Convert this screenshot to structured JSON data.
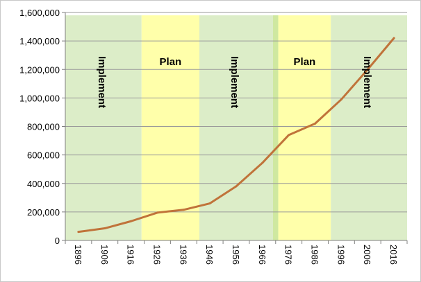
{
  "chart_data": {
    "type": "line",
    "title": "",
    "xlabel": "",
    "ylabel": "",
    "x": [
      1896,
      1906,
      1916,
      1926,
      1936,
      1946,
      1956,
      1966,
      1976,
      1986,
      1996,
      2006,
      2016
    ],
    "x_tick_labels": [
      "1896",
      "1906",
      "1916",
      "1926",
      "1936",
      "1946",
      "1956",
      "1966",
      "1976",
      "1986",
      "1996",
      "2006",
      "2016"
    ],
    "xlim": [
      1891,
      2021
    ],
    "ylim": [
      0,
      1600000
    ],
    "y_ticks": [
      0,
      200000,
      400000,
      600000,
      800000,
      1000000,
      1200000,
      1400000,
      1600000
    ],
    "y_tick_labels": [
      "0",
      "200,000",
      "400,000",
      "600,000",
      "800,000",
      "1,000,000",
      "1,200,000",
      "1,400,000",
      "1,600,000"
    ],
    "grid": true,
    "legend": "none",
    "series": [
      {
        "color": "#c0733a",
        "values": [
          [
            1896,
            60000
          ],
          [
            1906,
            85000
          ],
          [
            1916,
            135000
          ],
          [
            1926,
            195000
          ],
          [
            1936,
            215000
          ],
          [
            1946,
            260000
          ],
          [
            1956,
            380000
          ],
          [
            1966,
            545000
          ],
          [
            1976,
            740000
          ],
          [
            1986,
            820000
          ],
          [
            1996,
            990000
          ],
          [
            2006,
            1200000
          ],
          [
            2016,
            1420000
          ]
        ]
      }
    ],
    "bands": [
      {
        "label": "Implement",
        "start": 1891,
        "end": 1920,
        "color": "#dcedc8",
        "orientation": "vertical"
      },
      {
        "label": "Plan",
        "start": 1920,
        "end": 1942,
        "color": "#ffffaa",
        "orientation": "horizontal"
      },
      {
        "label": "Implement",
        "start": 1942,
        "end": 1970,
        "color": "#dcedc8",
        "orientation": "vertical"
      },
      {
        "label": "",
        "start": 1970,
        "end": 1972,
        "color": "#cfe8a0",
        "orientation": "horizontal"
      },
      {
        "label": "Plan",
        "start": 1972,
        "end": 1992,
        "color": "#ffffaa",
        "orientation": "horizontal"
      },
      {
        "label": "Implement",
        "start": 1992,
        "end": 2021,
        "color": "#dcedc8",
        "orientation": "vertical"
      }
    ],
    "colors": {
      "gridline": "#9a9a9a",
      "axis": "#7f7f7f"
    }
  }
}
